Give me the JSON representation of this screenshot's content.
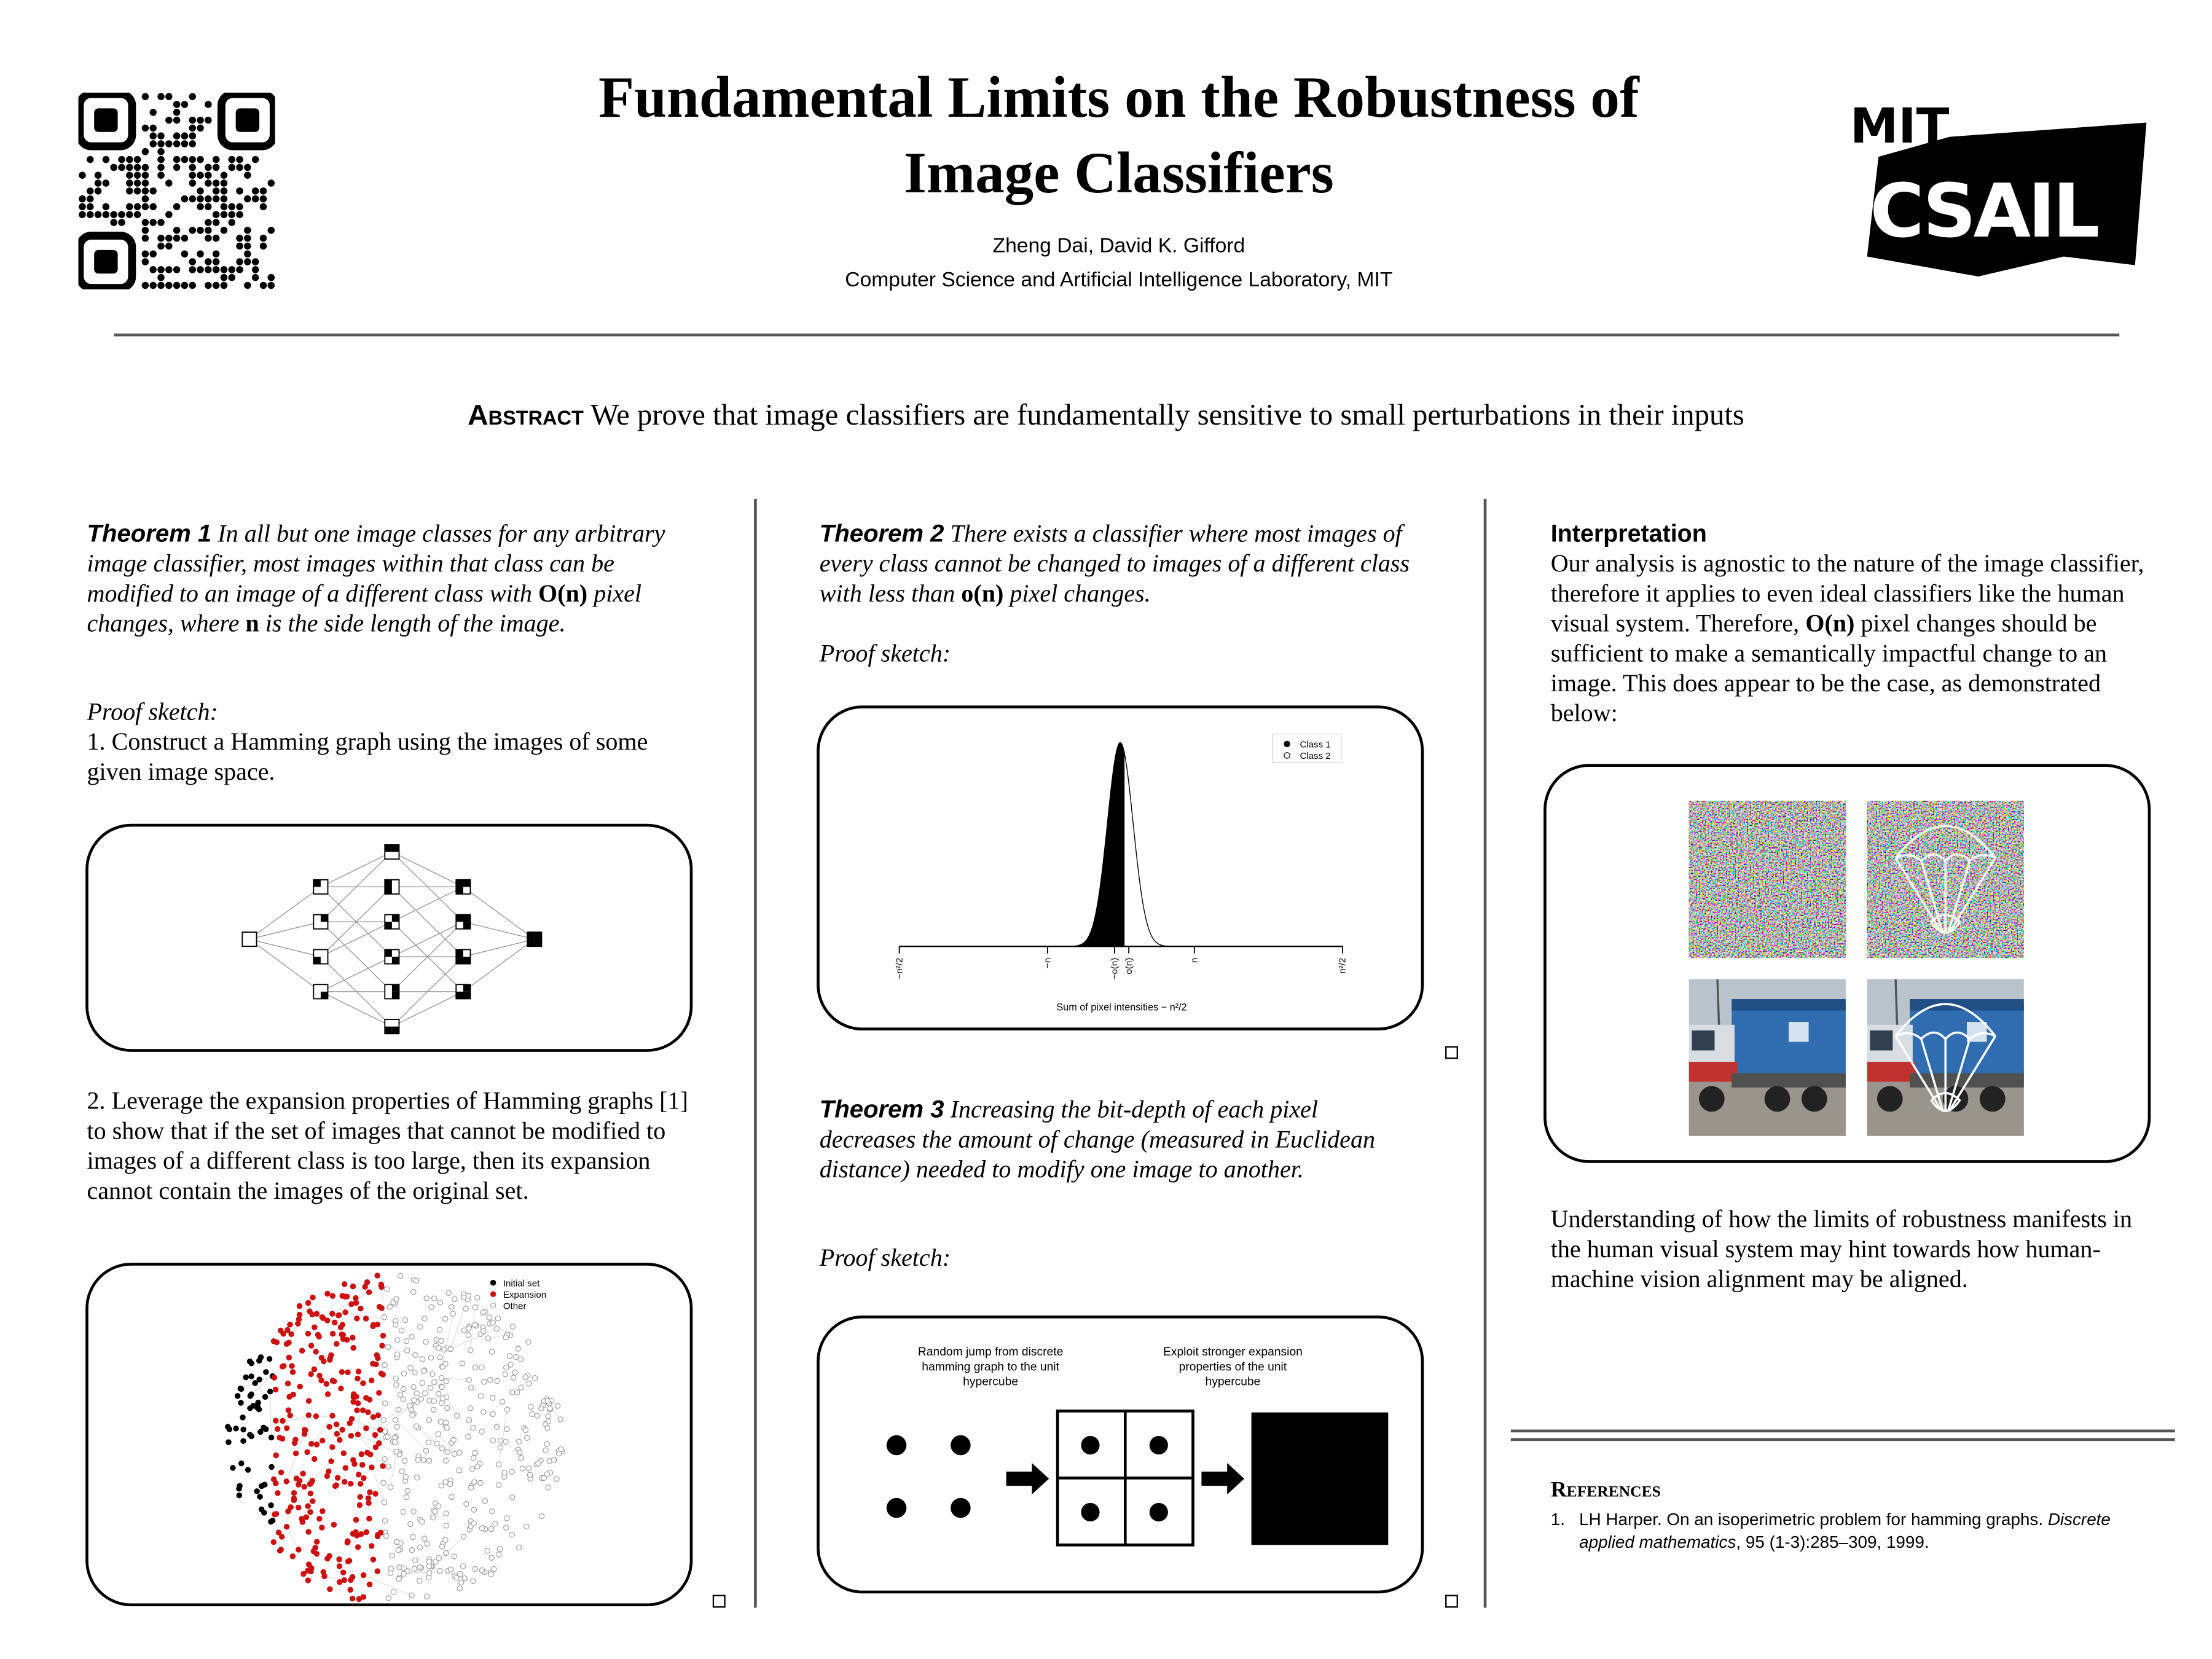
{
  "header": {
    "title": [
      "Fundamental Limits on the Robustness of",
      "Image Classifiers"
    ],
    "authors": "Zheng Dai, David K. Gifford",
    "affiliation": "Computer Science and Artificial Intelligence Laboratory, MIT",
    "logo": [
      "MIT",
      "CSAIL"
    ]
  },
  "abstract": {
    "label": "Abstract",
    "text": "We prove that image classifiers are fundamentally sensitive to small perturbations in their inputs"
  },
  "column1": {
    "theorem": {
      "label": "Theorem 1",
      "parts": [
        "In all but one image classes for any arbitrary image classifier, most images within that class can be modified to an image of a different class with ",
        "O(n)",
        " pixel changes, where ",
        "n",
        " is the side length of the image."
      ]
    },
    "proof": "Proof sketch:",
    "step1": "1. Construct a Hamming graph using the images of some given image space.",
    "step2": "2. Leverage the expansion properties of Hamming graphs [1] to show that if the set of images that cannot be modified to images of a different class is too large, then its expansion cannot contain the images of the original set.",
    "legend": [
      "Initial set",
      "Expansion",
      "Other"
    ]
  },
  "column2": {
    "theorem2": {
      "label": "Theorem 2",
      "parts": [
        "There exists a classifier where most images of every class cannot be changed to images of a different class with less than ",
        "o(n)",
        " pixel changes."
      ]
    },
    "proof2": "Proof sketch:",
    "plot": {
      "legend": [
        "Class 1",
        "Class 2"
      ],
      "tick_labels": [
        "−n²/2",
        "−n",
        "−o(n)",
        "o(n)",
        "n",
        "n²/2"
      ],
      "x_label": "Sum of pixel intensities − n²/2"
    },
    "theorem3": {
      "label": "Theorem 3",
      "text": "Increasing the bit-depth of each pixel decreases the amount of change (measured in Euclidean distance) needed to modify one image to another."
    },
    "proof3": "Proof sketch:",
    "figure_labels": [
      "Random jump from discrete hamming graph to the unit hypercube",
      "Exploit stronger expansion properties of the unit hypercube"
    ]
  },
  "column3": {
    "heading": "Interpretation",
    "parts": [
      "Our analysis is agnostic to the nature of the image classifier, therefore it applies to even ideal classifiers like the human visual system. Therefore, ",
      "O(n)",
      " pixel changes should be sufficient to make a semantically impactful change to an image. This does appear to be the case, as demonstrated below:"
    ],
    "conclusion": "Understanding of how the limits of robustness manifests in the human visual system may hint towards how human-machine vision alignment may be aligned.",
    "references": {
      "heading": "References",
      "items": [
        {
          "number": "1.",
          "parts": [
            "LH Harper. On an isoperimetric problem for hamming graphs. ",
            "Discrete applied mathematics",
            ", 95 (1-3):285–309, 1999."
          ]
        }
      ]
    }
  }
}
